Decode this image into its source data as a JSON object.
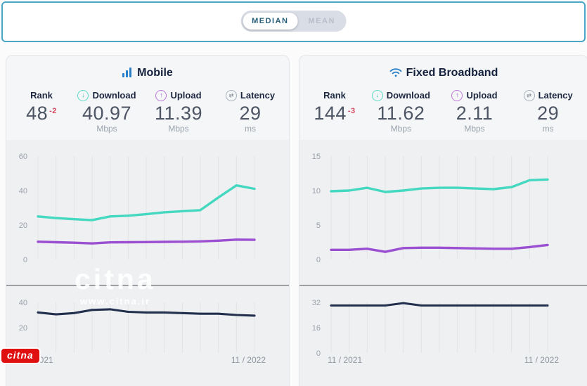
{
  "toggle": {
    "options": [
      {
        "label": "MEDIAN",
        "selected": true
      },
      {
        "label": "MEAN",
        "selected": false
      }
    ]
  },
  "colors": {
    "download_teal": "#45d8c1",
    "upload_purple": "#9b4fd1",
    "latency_navy": "#22304e",
    "title_blue": "#2a7fc9",
    "rank_delta_red": "#d6455d",
    "topbar_border_teal": "#4aa5c6"
  },
  "watermark": {
    "big_text": "citna",
    "site": "www.citna.ir"
  },
  "logo_badge": {
    "text": "citna"
  },
  "cards": [
    {
      "title": "Mobile",
      "stats": {
        "rank": {
          "label": "Rank",
          "value": "48",
          "delta": "-2"
        },
        "download": {
          "label": "Download",
          "value": "40.97",
          "unit": "Mbps"
        },
        "upload": {
          "label": "Upload",
          "value": "11.39",
          "unit": "Mbps"
        },
        "latency": {
          "label": "Latency",
          "value": "29",
          "unit": "ms"
        }
      },
      "chart_data": [
        {
          "type": "line",
          "x_start": "11 / 2021",
          "x_end": "11 / 2022",
          "points": 13,
          "ylabel": "Mbps",
          "ticks": [
            60,
            40,
            20,
            0
          ],
          "ymax": 60,
          "grid": "vertical",
          "series": [
            {
              "name": "Download",
              "color": "#45d8c1",
              "values": [
                25,
                24,
                23.4,
                22.8,
                25,
                25.4,
                26.3,
                27.4,
                28,
                28.6,
                36,
                43,
                41
              ]
            },
            {
              "name": "Upload",
              "color": "#9b4fd1",
              "values": [
                10.3,
                10,
                9.7,
                9.3,
                9.9,
                10,
                10.1,
                10.2,
                10.3,
                10.5,
                10.9,
                11.5,
                11.4
              ]
            }
          ]
        },
        {
          "type": "line",
          "points": 13,
          "ylabel": "ms",
          "ticks": [
            40,
            20,
            0
          ],
          "ymax": 40,
          "grid": "vertical",
          "x_labels": [
            "2021",
            "11 / 2022"
          ],
          "series": [
            {
              "name": "Latency",
              "color": "#22304e",
              "values": [
                32,
                30.5,
                31.5,
                34,
                34.5,
                32.5,
                32,
                32,
                31.5,
                31,
                31,
                30,
                29.5
              ]
            }
          ]
        }
      ]
    },
    {
      "title": "Fixed Broadband",
      "stats": {
        "rank": {
          "label": "Rank",
          "value": "144",
          "delta": "-3"
        },
        "download": {
          "label": "Download",
          "value": "11.62",
          "unit": "Mbps"
        },
        "upload": {
          "label": "Upload",
          "value": "2.11",
          "unit": "Mbps"
        },
        "latency": {
          "label": "Latency",
          "value": "29",
          "unit": "ms"
        }
      },
      "chart_data": [
        {
          "type": "line",
          "x_start": "11 / 2021",
          "x_end": "11 / 2022",
          "points": 13,
          "ylabel": "Mbps",
          "ticks": [
            15,
            10,
            5,
            0
          ],
          "ymax": 15,
          "grid": "vertical",
          "series": [
            {
              "name": "Download",
              "color": "#45d8c1",
              "values": [
                9.9,
                10,
                10.4,
                9.8,
                10,
                10.3,
                10.4,
                10.4,
                10.3,
                10.2,
                10.5,
                11.5,
                11.6
              ]
            },
            {
              "name": "Upload",
              "color": "#9b4fd1",
              "values": [
                1.4,
                1.4,
                1.55,
                1.1,
                1.65,
                1.7,
                1.7,
                1.65,
                1.6,
                1.55,
                1.55,
                1.8,
                2.1
              ]
            }
          ]
        },
        {
          "type": "line",
          "points": 13,
          "ylabel": "ms",
          "ticks": [
            32,
            16,
            0
          ],
          "ymax": 32,
          "grid": "vertical",
          "x_labels": [
            "11 / 2021",
            "11 / 2022"
          ],
          "series": [
            {
              "name": "Latency",
              "color": "#22304e",
              "values": [
                30,
                30,
                30,
                30,
                31.5,
                30,
                30,
                30,
                30,
                30,
                30,
                30,
                30
              ]
            }
          ]
        }
      ]
    }
  ]
}
